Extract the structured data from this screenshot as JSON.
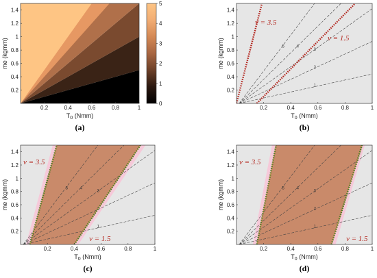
{
  "chart_data": [
    {
      "id": "a",
      "type": "heatmap",
      "caption": "(a)",
      "xlabel": "T0 (Nmm)",
      "ylabel": "me (kgmm)",
      "xlim": [
        0,
        1
      ],
      "ylim": [
        0,
        1.5
      ],
      "x_ticks": [
        "0.2",
        "0.4",
        "0.6",
        "0.8",
        "1"
      ],
      "y_ticks": [
        "0.2",
        "0.4",
        "0.6",
        "0.8",
        "1",
        "1.2",
        "1.4"
      ],
      "colorbar": {
        "ticks": [
          "0",
          "1",
          "2",
          "3",
          "4",
          "5"
        ],
        "range": [
          0,
          5
        ]
      },
      "bands": [
        {
          "ratio_from": 0,
          "ratio_to": 0.5,
          "color": "#000000"
        },
        {
          "ratio_from": 0.5,
          "ratio_to": 1,
          "color": "#3a2316"
        },
        {
          "ratio_from": 1,
          "ratio_to": 1.5,
          "color": "#7a4a2f"
        },
        {
          "ratio_from": 1.5,
          "ratio_to": 2,
          "color": "#b0704a"
        },
        {
          "ratio_from": 2,
          "ratio_to": 2.5,
          "color": "#e69863"
        },
        {
          "ratio_from": 2.5,
          "ratio_to": 100,
          "color": "#fec584"
        }
      ]
    },
    {
      "id": "b",
      "type": "line",
      "caption": "(b)",
      "xlabel": "T0 (Nmm)",
      "ylabel": "me (kgmm)",
      "xlim": [
        0,
        1
      ],
      "ylim": [
        0,
        1.5
      ],
      "x_ticks": [
        "0.2",
        "0.4",
        "0.6",
        "0.8",
        "1"
      ],
      "y_ticks": [
        "0.2",
        "0.4",
        "0.6",
        "0.8",
        "1",
        "1.2",
        "1.4"
      ],
      "contour_levels": [
        1,
        2,
        3,
        4,
        5
      ],
      "nu_lines": [
        {
          "label": "ν = 3.5",
          "x0": 0,
          "me_at_x1": 8.0
        },
        {
          "label": "ν = 1.5",
          "x0": 0.15,
          "me_at_x1": 1.76
        }
      ],
      "shaded_region": "none"
    },
    {
      "id": "c",
      "type": "line",
      "caption": "(c)",
      "xlabel": "T0 (Nmm)",
      "ylabel": "me (kgmm)",
      "xlim": [
        0,
        1
      ],
      "ylim": [
        0,
        1.5
      ],
      "x_ticks": [
        "0.2",
        "0.4",
        "0.6",
        "0.8",
        "1"
      ],
      "y_ticks": [
        "0.2",
        "0.4",
        "0.6",
        "0.8",
        "1",
        "1.2",
        "1.4"
      ],
      "contour_levels": [
        1,
        2,
        3,
        4,
        5
      ],
      "nu_lines": [
        {
          "label": "ν = 3.5",
          "x0": 0.07,
          "me_at_x1": 7.0
        },
        {
          "label": "ν = 1.5",
          "x0": 0.4,
          "me_at_x1": 1.83
        }
      ],
      "shaded_region": "between"
    },
    {
      "id": "d",
      "type": "line",
      "caption": "(d)",
      "xlabel": "T0 (Nmm)",
      "ylabel": "me (kgmm)",
      "xlim": [
        0,
        1
      ],
      "ylim": [
        0,
        1.5
      ],
      "x_ticks": [
        "0.2",
        "0.4",
        "0.6",
        "0.8",
        "1"
      ],
      "y_ticks": [
        "0.2",
        "0.4",
        "0.6",
        "0.8",
        "1",
        "1.2",
        "1.4"
      ],
      "contour_levels": [
        1,
        2,
        3,
        4,
        5
      ],
      "nu_lines": [
        {
          "label": "ν = 3.5",
          "x0": 0.15,
          "me_at_x1": 9.0
        },
        {
          "label": "ν = 1.5",
          "x0": 0.7,
          "me_at_x1": 2.0
        }
      ],
      "shaded_region": "between"
    }
  ],
  "colors": {
    "background_panel": "#e6e6e6",
    "pink_halo": "#f6c9d9",
    "feasible_fill": "#c98a6a",
    "nu_line_red": "#b3261e",
    "nu_line_green": "#4d7a2a",
    "contour": "#444444"
  }
}
